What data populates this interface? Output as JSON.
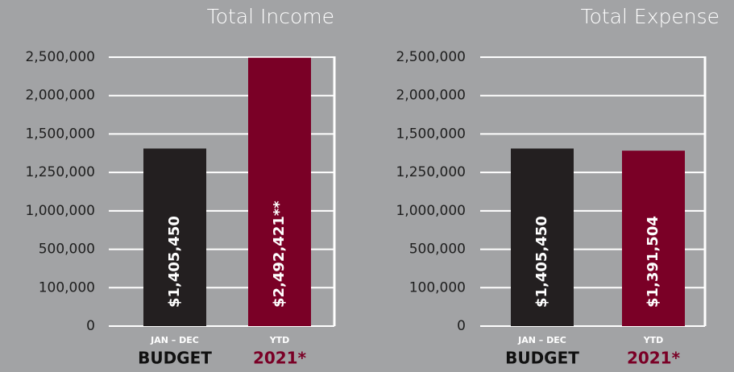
{
  "chart_data": [
    {
      "type": "bar",
      "title": "Total Income",
      "categories": [
        "BUDGET",
        "2021*"
      ],
      "sublabels": [
        "JAN – DEC",
        "YTD"
      ],
      "values": [
        1405450,
        2492421
      ],
      "value_labels": [
        "$1,405,450",
        "$2,492,421**"
      ],
      "colors": [
        "#231f20",
        "#7a0026"
      ],
      "ylim": [
        0,
        2500000
      ],
      "yticks": [
        0,
        {
          "value": 100000,
          "label": "100,000"
        },
        {
          "value": 500000,
          "label": "500,000"
        },
        {
          "value": 1000000,
          "label": "1,000,000"
        },
        {
          "value": 1250000,
          "label": "1,250,000"
        },
        {
          "value": 1500000,
          "label": "1,500,000"
        },
        {
          "value": 2000000,
          "label": "2,000,000"
        },
        {
          "value": 2500000,
          "label": "2,500,000"
        }
      ],
      "grid": true
    },
    {
      "type": "bar",
      "title": "Total Expense",
      "categories": [
        "BUDGET",
        "2021*"
      ],
      "sublabels": [
        "JAN – DEC",
        "YTD"
      ],
      "values": [
        1405450,
        1391504
      ],
      "value_labels": [
        "$1,405,450",
        "$1,391,504"
      ],
      "colors": [
        "#231f20",
        "#7a0026"
      ],
      "ylim": [
        0,
        2500000
      ],
      "yticks": [
        0,
        {
          "value": 100000,
          "label": "100,000"
        },
        {
          "value": 500000,
          "label": "500,000"
        },
        {
          "value": 1000000,
          "label": "1,000,000"
        },
        {
          "value": 1250000,
          "label": "1,250,000"
        },
        {
          "value": 1500000,
          "label": "1,500,000"
        },
        {
          "value": 2000000,
          "label": "2,000,000"
        },
        {
          "value": 2500000,
          "label": "2,500,000"
        }
      ],
      "grid": true
    }
  ]
}
